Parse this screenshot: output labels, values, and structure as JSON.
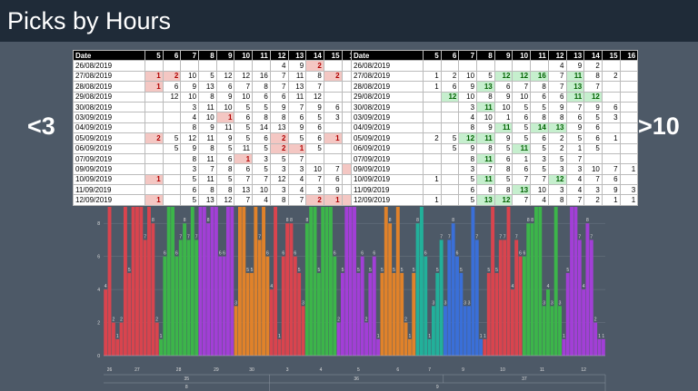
{
  "header": {
    "title": "Picks by Hours"
  },
  "table": {
    "columns": [
      "Date",
      5,
      6,
      7,
      8,
      9,
      10,
      11,
      12,
      13,
      14,
      15,
      16
    ],
    "rows": [
      {
        "date": "26/08/2019",
        "values": [
          null,
          null,
          null,
          null,
          null,
          null,
          null,
          4,
          9,
          2,
          null,
          null
        ]
      },
      {
        "date": "27/08/2019",
        "values": [
          1,
          2,
          10,
          5,
          12,
          12,
          16,
          7,
          11,
          8,
          2,
          null
        ]
      },
      {
        "date": "28/08/2019",
        "values": [
          1,
          6,
          9,
          13,
          6,
          7,
          8,
          7,
          13,
          7,
          null,
          null
        ]
      },
      {
        "date": "29/08/2019",
        "values": [
          null,
          12,
          10,
          8,
          9,
          10,
          6,
          6,
          11,
          12,
          null,
          null
        ]
      },
      {
        "date": "30/08/2019",
        "values": [
          null,
          null,
          3,
          11,
          10,
          5,
          5,
          9,
          7,
          9,
          6,
          null
        ]
      },
      {
        "date": "03/09/2019",
        "values": [
          null,
          null,
          4,
          10,
          1,
          6,
          8,
          8,
          6,
          5,
          3,
          null
        ]
      },
      {
        "date": "04/09/2019",
        "values": [
          null,
          null,
          8,
          9,
          11,
          5,
          14,
          13,
          9,
          6,
          null,
          null
        ]
      },
      {
        "date": "05/09/2019",
        "values": [
          2,
          5,
          12,
          11,
          9,
          5,
          6,
          2,
          5,
          6,
          1,
          null
        ]
      },
      {
        "date": "06/09/2019",
        "values": [
          null,
          5,
          9,
          8,
          5,
          11,
          5,
          2,
          1,
          5,
          null,
          null
        ]
      },
      {
        "date": "07/09/2019",
        "values": [
          null,
          null,
          8,
          11,
          6,
          1,
          3,
          5,
          7,
          null,
          null,
          null
        ]
      },
      {
        "date": "09/09/2019",
        "values": [
          null,
          null,
          3,
          7,
          8,
          6,
          5,
          3,
          3,
          10,
          7,
          1
        ]
      },
      {
        "date": "10/09/2019",
        "values": [
          1,
          null,
          5,
          11,
          5,
          7,
          7,
          12,
          4,
          7,
          6,
          null
        ]
      },
      {
        "date": "11/09/2019",
        "values": [
          null,
          null,
          6,
          8,
          8,
          13,
          10,
          3,
          4,
          3,
          9,
          3
        ]
      },
      {
        "date": "12/09/2019",
        "values": [
          1,
          null,
          5,
          13,
          12,
          7,
          4,
          8,
          7,
          2,
          1,
          1
        ]
      }
    ]
  },
  "highlights": [
    {
      "label": "<3",
      "below": 3,
      "color": "#f4c7c3",
      "text_color": "#b00000"
    },
    {
      "label": ">10",
      "above": 10,
      "color": "#c6efce",
      "text_color": "#006100"
    }
  ],
  "chart_data": {
    "type": "bar",
    "ylim": [
      0,
      9
    ],
    "yticks": [
      0,
      2,
      4,
      6,
      8
    ],
    "grid": true,
    "colors": [
      "#d9444e",
      "#d9444e",
      "#3cb54a",
      "#a23fd6",
      "#e0822a",
      "#d9444e",
      "#3cb54a",
      "#a23fd6",
      "#e0822a",
      "#22b09a",
      "#3a6fd8",
      "#d9444e",
      "#3cb54a",
      "#a23fd6"
    ],
    "days": [
      26,
      27,
      28,
      29,
      30,
      3,
      4,
      5,
      6,
      7,
      9,
      10,
      11,
      12
    ],
    "weeks": [
      {
        "label": 35,
        "span": 5
      },
      {
        "label": 36,
        "span": 5
      },
      {
        "label": 37,
        "span": 4
      }
    ],
    "months": [
      {
        "label": 8,
        "span": 5
      },
      {
        "label": 9,
        "span": 9
      }
    ]
  }
}
